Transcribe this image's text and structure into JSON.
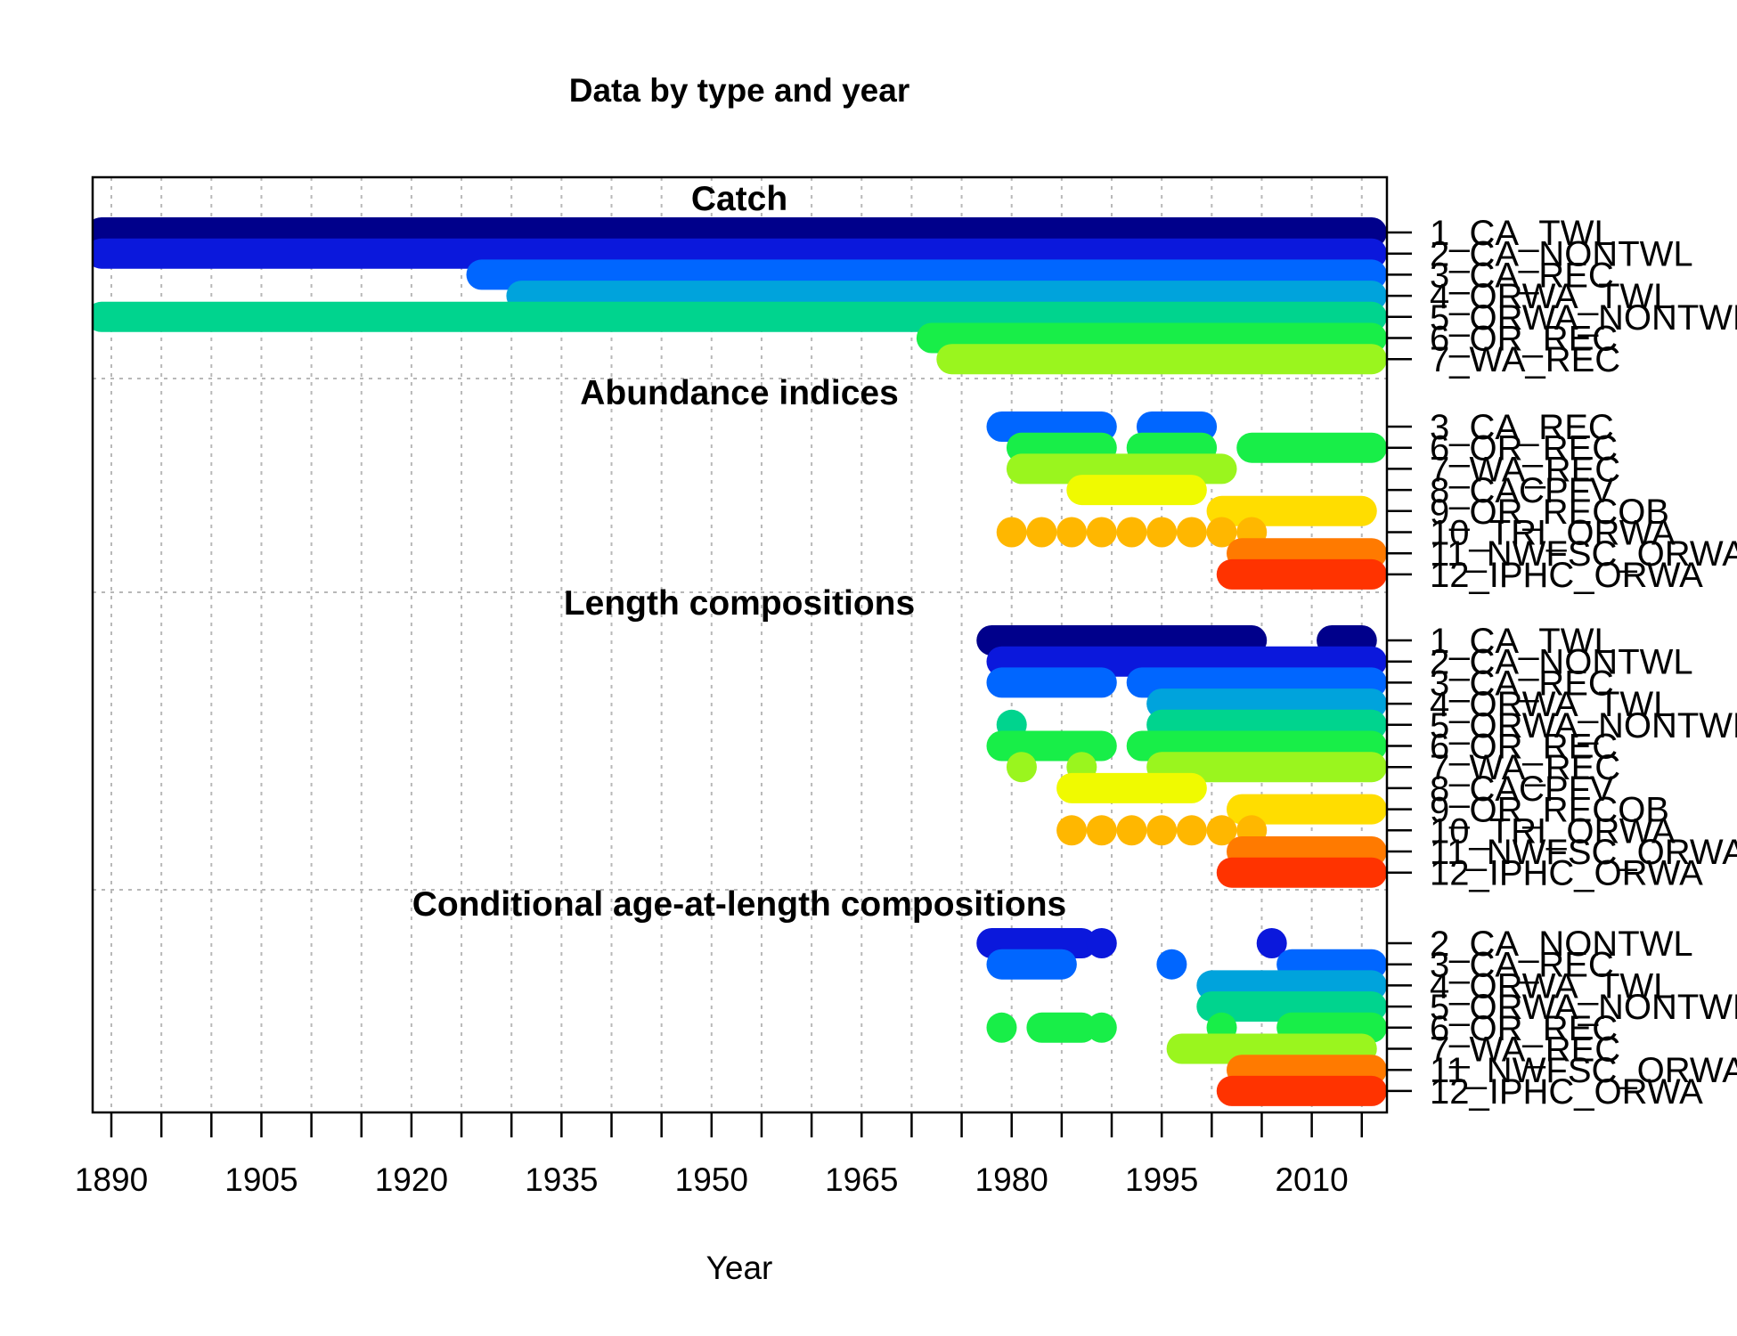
{
  "chart_data": {
    "type": "scatter",
    "title": "Data by type and year",
    "xlabel": "Year",
    "ylabel": "",
    "xlim": [
      1888,
      2017
    ],
    "x_ticks": [
      1890,
      1905,
      1920,
      1935,
      1950,
      1965,
      1980,
      1995,
      2010
    ],
    "grid": true,
    "fleet_colors": {
      "1_CA_TWL": "#00008B",
      "2_CA_NONTWL": "#0B18DC",
      "3_CA_REC": "#0066FF",
      "4_ORWA_TWL": "#00A3DC",
      "5_ORWA_NONTWL": "#00D48E",
      "6_OR_REC": "#18EE48",
      "7_WA_REC": "#9AF51E",
      "8_CACPFV": "#F0FA00",
      "9_OR_RECOB": "#FFDD00",
      "10_TRI_ORWA": "#FFB700",
      "11_NWFSC_ORWA": "#FF7A00",
      "12_IPHC_ORWA": "#FF3300"
    },
    "sections": [
      {
        "title": "Catch",
        "rows": [
          {
            "fleet": "1_CA_TWL",
            "segments": [
              [
                1889,
                2016
              ]
            ],
            "points": []
          },
          {
            "fleet": "2_CA_NONTWL",
            "segments": [
              [
                1889,
                2016
              ]
            ],
            "points": []
          },
          {
            "fleet": "3_CA_REC",
            "segments": [
              [
                1927,
                2016
              ]
            ],
            "points": []
          },
          {
            "fleet": "4_ORWA_TWL",
            "segments": [
              [
                1931,
                2016
              ]
            ],
            "points": []
          },
          {
            "fleet": "5_ORWA_NONTWL",
            "segments": [
              [
                1889,
                2016
              ]
            ],
            "points": []
          },
          {
            "fleet": "6_OR_REC",
            "segments": [
              [
                1972,
                2016
              ]
            ],
            "points": []
          },
          {
            "fleet": "7_WA_REC",
            "segments": [
              [
                1974,
                2016
              ]
            ],
            "points": []
          }
        ]
      },
      {
        "title": "Abundance indices",
        "rows": [
          {
            "fleet": "3_CA_REC",
            "segments": [
              [
                1979,
                1989
              ],
              [
                1994,
                1999
              ]
            ],
            "points": []
          },
          {
            "fleet": "6_OR_REC",
            "segments": [
              [
                1981,
                1989
              ],
              [
                1993,
                1999
              ],
              [
                2004,
                2016
              ]
            ],
            "points": []
          },
          {
            "fleet": "7_WA_REC",
            "segments": [
              [
                1981,
                2001
              ]
            ],
            "points": []
          },
          {
            "fleet": "8_CACPFV",
            "segments": [
              [
                1987,
                1998
              ]
            ],
            "points": []
          },
          {
            "fleet": "9_OR_RECOB",
            "segments": [
              [
                2001,
                2015
              ]
            ],
            "points": []
          },
          {
            "fleet": "10_TRI_ORWA",
            "segments": [],
            "points": [
              1980,
              1983,
              1986,
              1989,
              1992,
              1995,
              1998,
              2001,
              2004
            ]
          },
          {
            "fleet": "11_NWFSC_ORWA",
            "segments": [
              [
                2003,
                2016
              ]
            ],
            "points": []
          },
          {
            "fleet": "12_IPHC_ORWA",
            "segments": [
              [
                2002,
                2016
              ]
            ],
            "points": []
          }
        ]
      },
      {
        "title": "Length compositions",
        "rows": [
          {
            "fleet": "1_CA_TWL",
            "segments": [
              [
                1978,
                2004
              ],
              [
                2012,
                2015
              ]
            ],
            "points": []
          },
          {
            "fleet": "2_CA_NONTWL",
            "segments": [
              [
                1979,
                2016
              ]
            ],
            "points": []
          },
          {
            "fleet": "3_CA_REC",
            "segments": [
              [
                1979,
                1989
              ],
              [
                1993,
                2016
              ]
            ],
            "points": []
          },
          {
            "fleet": "4_ORWA_TWL",
            "segments": [
              [
                1995,
                2016
              ]
            ],
            "points": []
          },
          {
            "fleet": "5_ORWA_NONTWL",
            "segments": [
              [
                1995,
                2016
              ]
            ],
            "points": [
              1980
            ]
          },
          {
            "fleet": "6_OR_REC",
            "segments": [
              [
                1979,
                1989
              ],
              [
                1993,
                2016
              ]
            ],
            "points": []
          },
          {
            "fleet": "7_WA_REC",
            "segments": [
              [
                1995,
                2016
              ]
            ],
            "points": [
              1981,
              1987
            ]
          },
          {
            "fleet": "8_CACPFV",
            "segments": [
              [
                1986,
                1998
              ]
            ],
            "points": []
          },
          {
            "fleet": "9_OR_RECOB",
            "segments": [
              [
                2003,
                2016
              ]
            ],
            "points": []
          },
          {
            "fleet": "10_TRI_ORWA",
            "segments": [],
            "points": [
              1986,
              1989,
              1992,
              1995,
              1998,
              2001,
              2004
            ]
          },
          {
            "fleet": "11_NWFSC_ORWA",
            "segments": [
              [
                2003,
                2016
              ]
            ],
            "points": []
          },
          {
            "fleet": "12_IPHC_ORWA",
            "segments": [
              [
                2002,
                2016
              ]
            ],
            "points": []
          }
        ]
      },
      {
        "title": "Conditional age-at-length compositions",
        "rows": [
          {
            "fleet": "2_CA_NONTWL",
            "segments": [
              [
                1978,
                1987
              ]
            ],
            "points": [
              1989,
              2006
            ]
          },
          {
            "fleet": "3_CA_REC",
            "segments": [
              [
                1979,
                1985
              ],
              [
                2008,
                2016
              ]
            ],
            "points": [
              1996
            ]
          },
          {
            "fleet": "4_ORWA_TWL",
            "segments": [
              [
                2000,
                2016
              ]
            ],
            "points": []
          },
          {
            "fleet": "5_ORWA_NONTWL",
            "segments": [
              [
                2000,
                2016
              ]
            ],
            "points": []
          },
          {
            "fleet": "6_OR_REC",
            "segments": [
              [
                1983,
                1987
              ],
              [
                2008,
                2016
              ]
            ],
            "points": [
              1979,
              1989,
              2001
            ]
          },
          {
            "fleet": "7_WA_REC",
            "segments": [
              [
                1997,
                2015
              ]
            ],
            "points": []
          },
          {
            "fleet": "11_NWFSC_ORWA",
            "segments": [
              [
                2003,
                2016
              ]
            ],
            "points": []
          },
          {
            "fleet": "12_IPHC_ORWA",
            "segments": [
              [
                2002,
                2016
              ]
            ],
            "points": []
          }
        ]
      }
    ]
  }
}
